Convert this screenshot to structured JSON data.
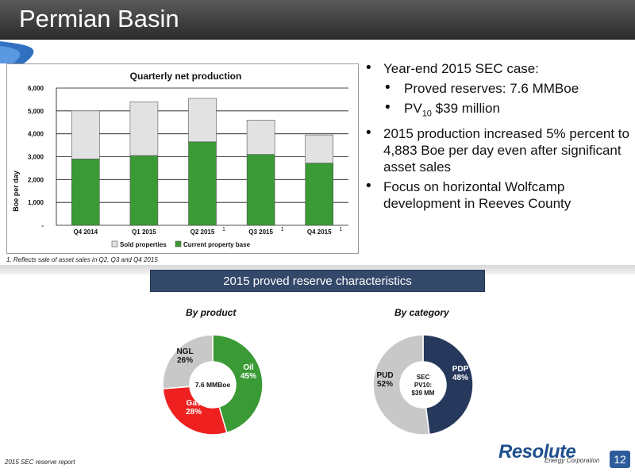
{
  "header": {
    "title": "Permian Basin"
  },
  "chart_data": [
    {
      "type": "bar",
      "title": "Quarterly net production",
      "ylabel": "Boe per day",
      "xlabel": "",
      "ylim": [
        0,
        6000
      ],
      "yticks": [
        "6,000",
        "5,000",
        "4,000",
        "3,000",
        "2,000",
        "1,000",
        "-"
      ],
      "ytick_values": [
        6000,
        5000,
        4000,
        3000,
        2000,
        1000,
        0
      ],
      "categories": [
        "Q4 2014",
        "Q1 2015",
        "Q2 2015",
        "Q3 2015",
        "Q4 2015"
      ],
      "category_superscripts": [
        "",
        "",
        "1",
        "1",
        "1"
      ],
      "stacked": true,
      "grid": true,
      "legend_position": "bottom",
      "series": [
        {
          "name": "Current property base",
          "color": "#3a9a35",
          "values": [
            2900,
            3050,
            3650,
            3100,
            2720
          ]
        },
        {
          "name": "Sold properties",
          "color": "#e2e2e2",
          "values": [
            2100,
            2350,
            1900,
            1500,
            1230
          ]
        }
      ]
    },
    {
      "type": "pie",
      "title": "By product",
      "center_label": "7.6 MMBoe",
      "slices": [
        {
          "label": "Oil",
          "value": 45,
          "value_label": "45%",
          "color": "#3a9a35"
        },
        {
          "label": "Gas",
          "value": 28,
          "value_label": "28%",
          "color": "#ee2020"
        },
        {
          "label": "NGL",
          "value": 26,
          "value_label": "26%",
          "color": "#c8c8c8"
        }
      ]
    },
    {
      "type": "pie",
      "title": "By category",
      "center_label": [
        "SEC",
        "PV10:",
        "$39 MM"
      ],
      "slices": [
        {
          "label": "PDP",
          "value": 48,
          "value_label": "48%",
          "color": "#26395c"
        },
        {
          "label": "PUD",
          "value": 52,
          "value_label": "52%",
          "color": "#c8c8c8"
        }
      ]
    }
  ],
  "footnote": "1. Reflects sale of asset sales in Q2, Q3 and Q4 2015",
  "bullets": {
    "b1": "Year-end 2015 SEC case:",
    "b1a": "Proved reserves: 7.6 MMBoe",
    "b1b_prefix": "PV",
    "b1b_sub": "10",
    "b1b_suffix": " $39 million",
    "b2": "2015 production increased 5% percent to 4,883 Boe per day even after significant asset sales",
    "b3": "Focus on horizontal Wolfcamp development in Reeves County"
  },
  "reserve_title": "2015 proved reserve characteristics",
  "source": "2015 SEC reserve report",
  "logo": {
    "main": "Resolute",
    "sub": "Energy Corporation"
  },
  "page_number": "12",
  "colors": {
    "header": "#3a3a3a",
    "accent_blue": "#2e5c9b",
    "title_bar": "#34496a"
  }
}
